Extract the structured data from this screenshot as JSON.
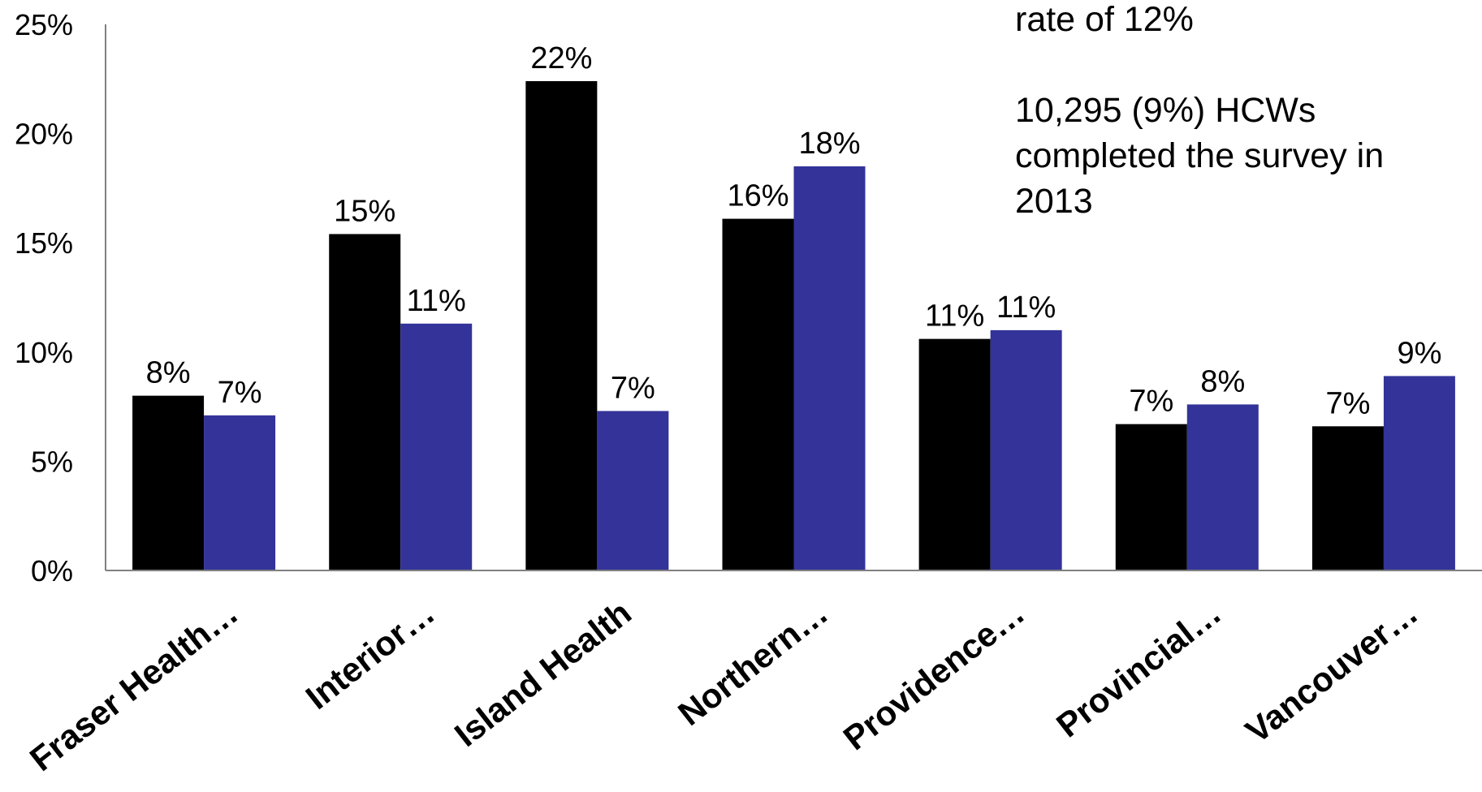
{
  "chart_data": {
    "type": "bar",
    "categories": [
      "Fraser Health…",
      "Interior…",
      "Island Health",
      "Northern…",
      "Providence…",
      "Provincial…",
      "Vancouver…"
    ],
    "series": [
      {
        "color": "#000000",
        "values": [
          8.0,
          15.4,
          22.4,
          16.1,
          10.6,
          6.7,
          6.6
        ],
        "labels": [
          "8%",
          "15%",
          "22%",
          "16%",
          "11%",
          "7%",
          "7%"
        ]
      },
      {
        "color": "#333399",
        "values": [
          7.1,
          11.3,
          7.3,
          18.5,
          11.0,
          7.6,
          8.9
        ],
        "labels": [
          "7%",
          "11%",
          "7%",
          "18%",
          "11%",
          "8%",
          "9%"
        ]
      }
    ],
    "ylim": [
      0,
      25
    ],
    "yticks": [
      0,
      5,
      10,
      15,
      20,
      25
    ],
    "ytick_labels": [
      "0%",
      "5%",
      "10%",
      "15%",
      "20%",
      "25%"
    ],
    "xlabel": "",
    "ylabel": "",
    "grid": false,
    "legend": "none"
  },
  "annotation": {
    "line1": "rate of 12%",
    "line2": "10,295 (9%) HCWs completed the survey in 2013"
  }
}
